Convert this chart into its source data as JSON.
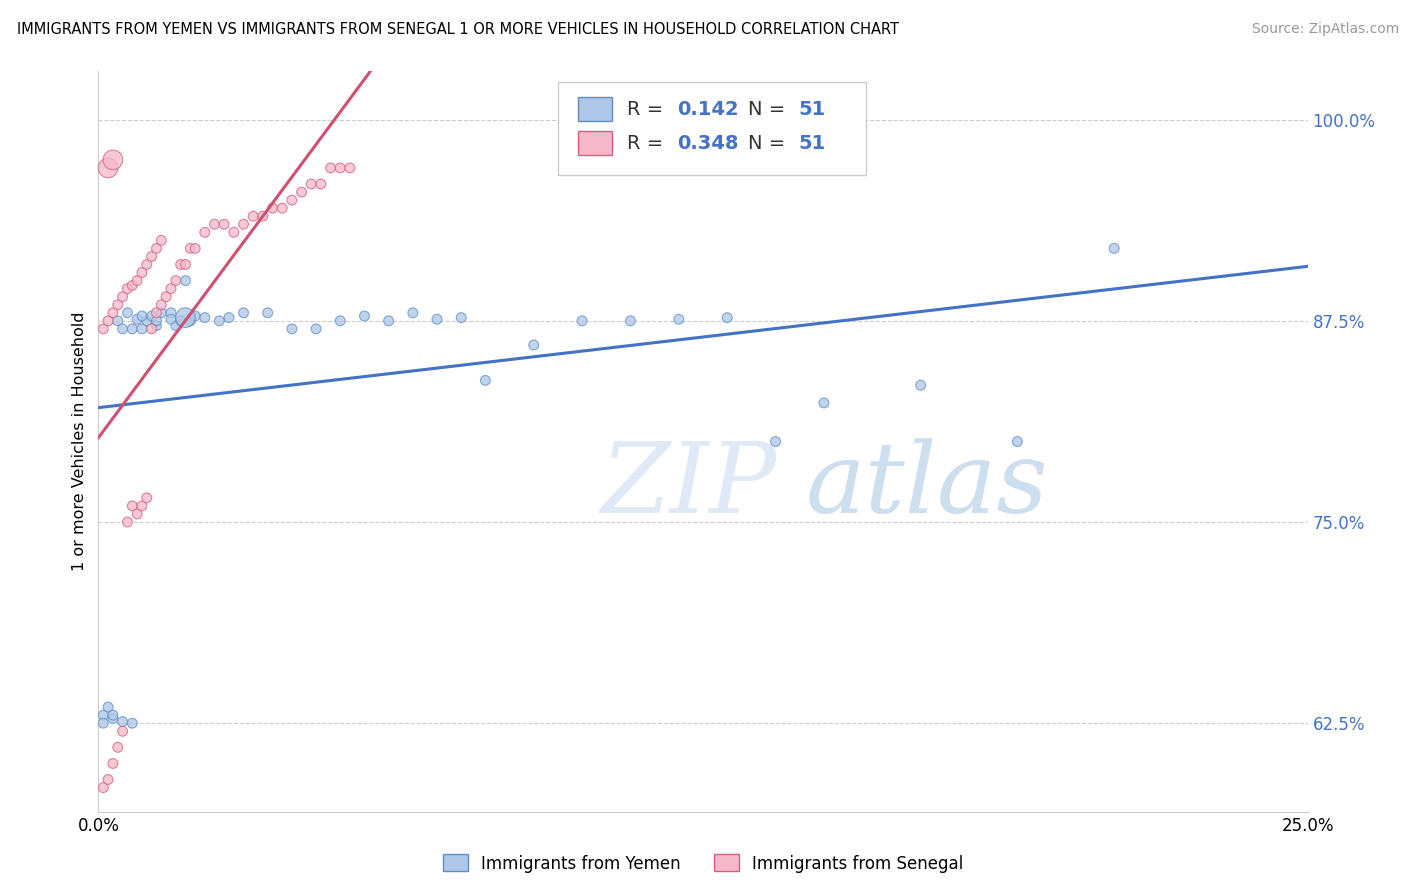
{
  "title": "IMMIGRANTS FROM YEMEN VS IMMIGRANTS FROM SENEGAL 1 OR MORE VEHICLES IN HOUSEHOLD CORRELATION CHART",
  "source": "Source: ZipAtlas.com",
  "ylabel": "1 or more Vehicles in Household",
  "legend_blue_R": "0.142",
  "legend_blue_N": "51",
  "legend_pink_R": "0.348",
  "legend_pink_N": "51",
  "legend_blue_label": "Immigrants from Yemen",
  "legend_pink_label": "Immigrants from Senegal",
  "xlim": [
    0.0,
    0.25
  ],
  "ylim": [
    0.57,
    1.03
  ],
  "yticks": [
    0.625,
    0.75,
    0.875,
    1.0
  ],
  "ytick_labels": [
    "62.5%",
    "75.0%",
    "87.5%",
    "100.0%"
  ],
  "xticks": [
    0.0,
    0.05,
    0.1,
    0.15,
    0.2,
    0.25
  ],
  "xtick_labels": [
    "0.0%",
    "",
    "",
    "",
    "",
    "25.0%"
  ],
  "blue_color": "#aec6e8",
  "pink_color": "#f5b8c8",
  "blue_edge_color": "#5b8ec4",
  "pink_edge_color": "#d06080",
  "blue_line_color": "#4472c4",
  "pink_line_color": "#d05070",
  "watermark_zip": "ZIP",
  "watermark_atlas": "atlas",
  "blue_scatter_x": [
    0.001,
    0.002,
    0.003,
    0.004,
    0.005,
    0.006,
    0.007,
    0.008,
    0.009,
    0.01,
    0.011,
    0.012,
    0.013,
    0.015,
    0.016,
    0.017,
    0.018,
    0.019,
    0.02,
    0.022,
    0.025,
    0.027,
    0.03,
    0.035,
    0.04,
    0.045,
    0.05,
    0.055,
    0.06,
    0.065,
    0.07,
    0.075,
    0.08,
    0.09,
    0.1,
    0.11,
    0.12,
    0.13,
    0.14,
    0.15,
    0.17,
    0.19,
    0.21,
    0.001,
    0.003,
    0.005,
    0.007,
    0.009,
    0.012,
    0.015,
    0.018
  ],
  "blue_scatter_y": [
    0.63,
    0.635,
    0.628,
    0.875,
    0.87,
    0.88,
    0.87,
    0.876,
    0.87,
    0.875,
    0.878,
    0.872,
    0.88,
    0.88,
    0.872,
    0.875,
    0.9,
    0.875,
    0.878,
    0.877,
    0.875,
    0.877,
    0.88,
    0.88,
    0.87,
    0.87,
    0.875,
    0.878,
    0.875,
    0.88,
    0.876,
    0.877,
    0.838,
    0.86,
    0.875,
    0.875,
    0.876,
    0.877,
    0.8,
    0.824,
    0.835,
    0.8,
    0.92,
    0.625,
    0.63,
    0.626,
    0.625,
    0.878,
    0.875,
    0.876,
    0.877
  ],
  "blue_scatter_size": [
    50,
    50,
    50,
    50,
    50,
    50,
    50,
    50,
    50,
    50,
    50,
    50,
    50,
    50,
    50,
    50,
    50,
    50,
    50,
    50,
    50,
    50,
    50,
    50,
    50,
    50,
    50,
    50,
    50,
    50,
    50,
    50,
    50,
    50,
    50,
    50,
    50,
    50,
    50,
    50,
    50,
    50,
    50,
    50,
    50,
    50,
    50,
    50,
    50,
    50,
    200
  ],
  "pink_scatter_x": [
    0.001,
    0.002,
    0.003,
    0.004,
    0.005,
    0.006,
    0.007,
    0.008,
    0.009,
    0.01,
    0.011,
    0.012,
    0.013,
    0.014,
    0.015,
    0.016,
    0.017,
    0.018,
    0.019,
    0.02,
    0.022,
    0.024,
    0.026,
    0.028,
    0.03,
    0.032,
    0.034,
    0.036,
    0.038,
    0.04,
    0.042,
    0.044,
    0.046,
    0.048,
    0.05,
    0.052,
    0.001,
    0.002,
    0.003,
    0.004,
    0.005,
    0.006,
    0.007,
    0.008,
    0.009,
    0.01,
    0.011,
    0.012,
    0.013,
    0.002,
    0.003
  ],
  "pink_scatter_y": [
    0.585,
    0.59,
    0.6,
    0.61,
    0.62,
    0.75,
    0.76,
    0.755,
    0.76,
    0.765,
    0.87,
    0.88,
    0.885,
    0.89,
    0.895,
    0.9,
    0.91,
    0.91,
    0.92,
    0.92,
    0.93,
    0.935,
    0.935,
    0.93,
    0.935,
    0.94,
    0.94,
    0.945,
    0.945,
    0.95,
    0.955,
    0.96,
    0.96,
    0.97,
    0.97,
    0.97,
    0.87,
    0.875,
    0.88,
    0.885,
    0.89,
    0.895,
    0.897,
    0.9,
    0.905,
    0.91,
    0.915,
    0.92,
    0.925,
    0.97,
    0.975
  ],
  "pink_scatter_size": [
    50,
    50,
    50,
    50,
    50,
    50,
    50,
    50,
    50,
    50,
    50,
    50,
    50,
    50,
    50,
    50,
    50,
    50,
    50,
    50,
    50,
    50,
    50,
    50,
    50,
    50,
    50,
    50,
    50,
    50,
    50,
    50,
    50,
    50,
    50,
    50,
    50,
    50,
    50,
    50,
    50,
    50,
    50,
    50,
    50,
    50,
    50,
    50,
    50,
    200,
    200
  ]
}
